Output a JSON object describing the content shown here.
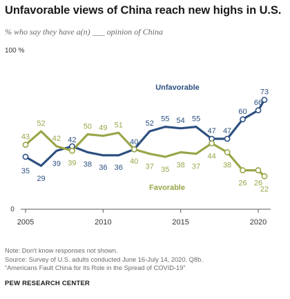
{
  "title": "Unfavorable views of China reach new highs in U.S.",
  "subtitle": "% who say they have a(n) ___ opinion of China",
  "colors": {
    "unfavorable": "#2c4f80",
    "favorable": "#9aa548"
  },
  "chart_data": {
    "type": "line",
    "title": "Unfavorable views of China reach new highs in U.S.",
    "subtitle": "% who say they have a(n) ___ opinion of China",
    "ylim": [
      0,
      100
    ],
    "y_top_label": "100 %",
    "y_bottom_label": "0",
    "x_ticks": [
      2005,
      2010,
      2015,
      2020
    ],
    "grid": false,
    "series": [
      {
        "name": "Unfavorable",
        "color": "#2c4f80",
        "x": [
          2005,
          2006,
          2007,
          2008,
          2009,
          2010,
          2011,
          2012,
          2013,
          2014,
          2015,
          2016,
          2017,
          2018,
          2019,
          2020,
          2020.4
        ],
        "values": [
          35,
          29,
          39,
          42,
          38,
          36,
          36,
          40,
          52,
          55,
          54,
          55,
          47,
          47,
          60,
          66,
          73
        ]
      },
      {
        "name": "Favorable",
        "color": "#9aa548",
        "x": [
          2005,
          2006,
          2007,
          2008,
          2009,
          2010,
          2011,
          2012,
          2013,
          2014,
          2015,
          2016,
          2017,
          2018,
          2019,
          2020,
          2020.4
        ],
        "values": [
          43,
          52,
          42,
          39,
          50,
          49,
          51,
          40,
          37,
          35,
          38,
          37,
          44,
          38,
          26,
          26,
          22
        ]
      }
    ]
  },
  "notes": {
    "note": "Note: Don't know responses not shown.",
    "source": "Source: Survey of U.S. adults conducted June 16-July 14, 2020. Q8b.",
    "report": "“Americans Fault China for Its Role in the Spread of COVID-19”"
  },
  "source_org": "PEW RESEARCH CENTER"
}
